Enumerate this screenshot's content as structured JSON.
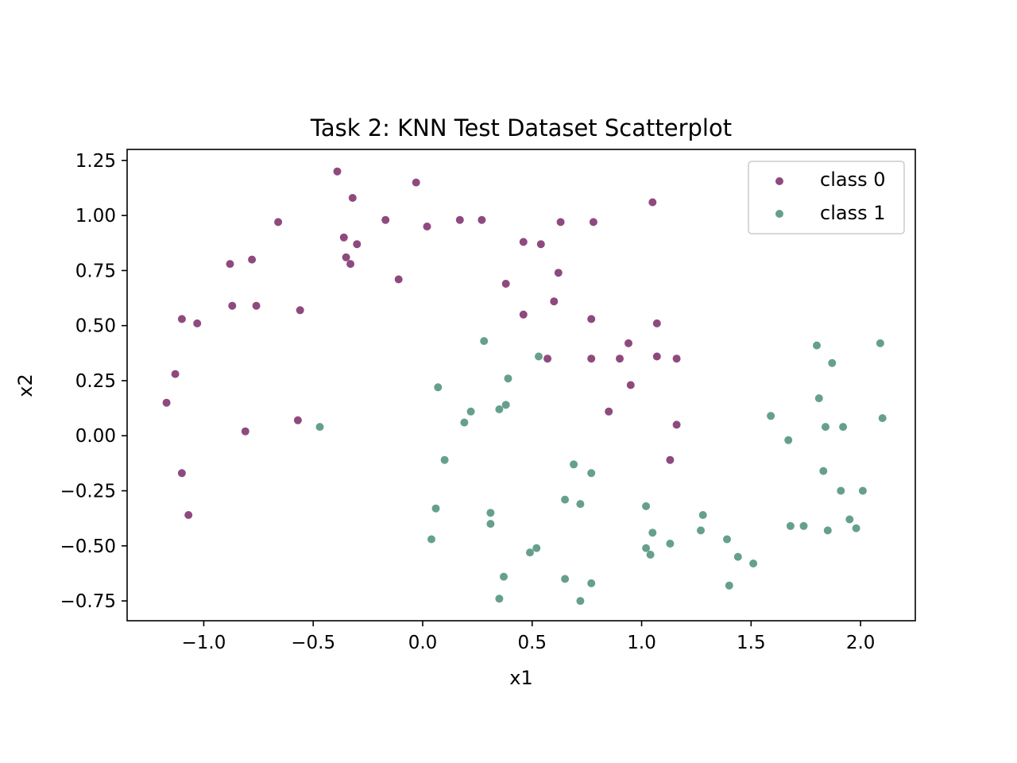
{
  "chart_data": {
    "type": "scatter",
    "title": "Task 2: KNN Test Dataset Scatterplot",
    "xlabel": "x1",
    "ylabel": "x2",
    "xlim": [
      -1.35,
      2.25
    ],
    "ylim": [
      -0.84,
      1.3
    ],
    "xticks": [
      -1.0,
      -0.5,
      0.0,
      0.5,
      1.0,
      1.5,
      2.0
    ],
    "xtick_labels": [
      "−1.0",
      "−0.5",
      "0.0",
      "0.5",
      "1.0",
      "1.5",
      "2.0"
    ],
    "yticks": [
      -0.75,
      -0.5,
      -0.25,
      0.0,
      0.25,
      0.5,
      0.75,
      1.0,
      1.25
    ],
    "ytick_labels": [
      "−0.75",
      "−0.50",
      "−0.25",
      "0.00",
      "0.25",
      "0.50",
      "0.75",
      "1.00",
      "1.25"
    ],
    "grid": false,
    "legend_position": "top-right",
    "colors": {
      "class_0": "#8e4a7e",
      "class_1": "#66a08c"
    },
    "series": [
      {
        "name": "class 0",
        "points": [
          [
            -0.39,
            1.2
          ],
          [
            -0.32,
            1.08
          ],
          [
            -0.03,
            1.15
          ],
          [
            -0.66,
            0.97
          ],
          [
            -0.17,
            0.98
          ],
          [
            0.02,
            0.95
          ],
          [
            0.17,
            0.98
          ],
          [
            0.27,
            0.98
          ],
          [
            0.63,
            0.97
          ],
          [
            0.78,
            0.97
          ],
          [
            1.05,
            1.06
          ],
          [
            -0.36,
            0.9
          ],
          [
            -0.3,
            0.87
          ],
          [
            0.46,
            0.88
          ],
          [
            0.54,
            0.87
          ],
          [
            -0.35,
            0.81
          ],
          [
            -0.33,
            0.78
          ],
          [
            -0.88,
            0.78
          ],
          [
            -0.78,
            0.8
          ],
          [
            -0.11,
            0.71
          ],
          [
            0.38,
            0.69
          ],
          [
            0.62,
            0.74
          ],
          [
            -0.87,
            0.59
          ],
          [
            -0.76,
            0.59
          ],
          [
            -0.56,
            0.57
          ],
          [
            0.6,
            0.61
          ],
          [
            0.46,
            0.55
          ],
          [
            -1.1,
            0.53
          ],
          [
            -1.03,
            0.51
          ],
          [
            0.77,
            0.53
          ],
          [
            1.07,
            0.51
          ],
          [
            0.94,
            0.42
          ],
          [
            -1.13,
            0.28
          ],
          [
            0.57,
            0.35
          ],
          [
            0.77,
            0.35
          ],
          [
            0.9,
            0.35
          ],
          [
            1.07,
            0.36
          ],
          [
            1.16,
            0.35
          ],
          [
            -1.17,
            0.15
          ],
          [
            0.95,
            0.23
          ],
          [
            0.85,
            0.11
          ],
          [
            -0.57,
            0.07
          ],
          [
            -0.81,
            0.02
          ],
          [
            1.16,
            0.05
          ],
          [
            1.13,
            -0.11
          ],
          [
            -1.1,
            -0.17
          ],
          [
            -1.07,
            -0.36
          ]
        ]
      },
      {
        "name": "class 1",
        "points": [
          [
            -0.47,
            0.04
          ],
          [
            0.28,
            0.43
          ],
          [
            0.53,
            0.36
          ],
          [
            0.07,
            0.22
          ],
          [
            0.39,
            0.26
          ],
          [
            0.19,
            0.06
          ],
          [
            0.22,
            0.11
          ],
          [
            0.35,
            0.12
          ],
          [
            0.38,
            0.14
          ],
          [
            0.1,
            -0.11
          ],
          [
            0.69,
            -0.13
          ],
          [
            0.77,
            -0.17
          ],
          [
            0.06,
            -0.33
          ],
          [
            0.31,
            -0.35
          ],
          [
            0.31,
            -0.4
          ],
          [
            0.65,
            -0.29
          ],
          [
            0.72,
            -0.31
          ],
          [
            1.02,
            -0.32
          ],
          [
            0.04,
            -0.47
          ],
          [
            0.49,
            -0.53
          ],
          [
            0.52,
            -0.51
          ],
          [
            1.05,
            -0.44
          ],
          [
            1.02,
            -0.51
          ],
          [
            1.04,
            -0.54
          ],
          [
            1.13,
            -0.49
          ],
          [
            1.28,
            -0.36
          ],
          [
            1.27,
            -0.43
          ],
          [
            0.37,
            -0.64
          ],
          [
            0.35,
            -0.74
          ],
          [
            0.65,
            -0.65
          ],
          [
            0.72,
            -0.75
          ],
          [
            0.77,
            -0.67
          ],
          [
            1.39,
            -0.47
          ],
          [
            1.44,
            -0.55
          ],
          [
            1.51,
            -0.58
          ],
          [
            1.4,
            -0.68
          ],
          [
            1.59,
            0.09
          ],
          [
            1.67,
            -0.02
          ],
          [
            1.8,
            0.41
          ],
          [
            1.87,
            0.33
          ],
          [
            1.81,
            0.17
          ],
          [
            1.84,
            0.04
          ],
          [
            1.92,
            0.04
          ],
          [
            2.09,
            0.42
          ],
          [
            2.1,
            0.08
          ],
          [
            1.83,
            -0.16
          ],
          [
            1.91,
            -0.25
          ],
          [
            2.01,
            -0.25
          ],
          [
            1.68,
            -0.41
          ],
          [
            1.74,
            -0.41
          ],
          [
            1.85,
            -0.43
          ],
          [
            1.95,
            -0.38
          ],
          [
            1.98,
            -0.42
          ]
        ]
      }
    ]
  }
}
